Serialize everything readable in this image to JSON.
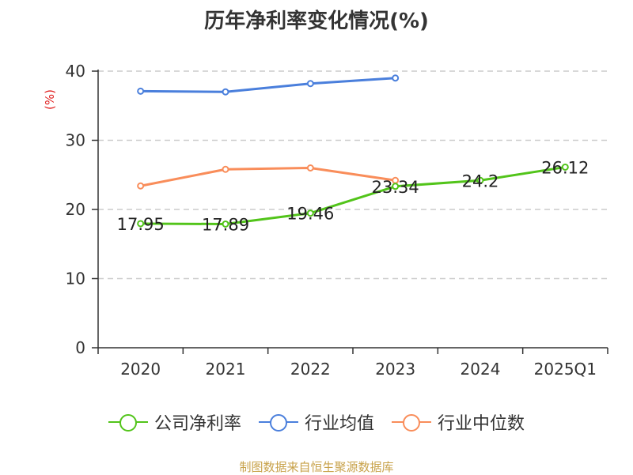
{
  "chart_data": {
    "type": "line",
    "title": "历年净利率变化情况(%)",
    "ylabel": "(%)",
    "xlabel": "",
    "ylim": [
      0,
      40
    ],
    "yticks": [
      "0",
      "10",
      "20",
      "30",
      "40"
    ],
    "categories": [
      "2020",
      "2021",
      "2022",
      "2023",
      "2024",
      "2025Q1"
    ],
    "series": [
      {
        "name": "公司净利率",
        "color": "#52c41a",
        "values": [
          17.95,
          17.89,
          19.46,
          23.34,
          24.2,
          26.12
        ],
        "labels": [
          "17.95",
          "17.89",
          "19.46",
          "23.34",
          "24.2",
          "26.12"
        ]
      },
      {
        "name": "行业均值",
        "color": "#4a7fdc",
        "values": [
          37.1,
          37.0,
          38.2,
          39.0,
          null,
          null
        ]
      },
      {
        "name": "行业中位数",
        "color": "#f98d5a",
        "values": [
          23.4,
          25.8,
          26.0,
          24.2,
          null,
          null
        ]
      }
    ],
    "grid": true,
    "legend_position": "bottom"
  },
  "source": "制图数据来自恒生聚源数据库"
}
